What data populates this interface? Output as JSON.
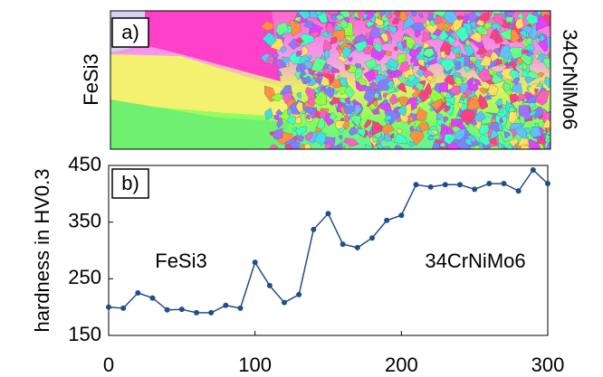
{
  "image_panel": {
    "label": "a)",
    "left_label": "FeSi3",
    "right_label": "34CrNiMo6"
  },
  "chart_data": {
    "type": "line",
    "panel_label": "b)",
    "y_label": "hardness in HV0.3",
    "annotations": [
      "FeSi3",
      "34CrNiMo6"
    ],
    "x": [
      0,
      10,
      20,
      30,
      40,
      50,
      60,
      70,
      80,
      90,
      100,
      110,
      120,
      130,
      140,
      150,
      160,
      170,
      180,
      190,
      200,
      210,
      220,
      230,
      240,
      250,
      260,
      270,
      280,
      290,
      300
    ],
    "series": [
      {
        "color": "#1f4e8c",
        "values": [
          200,
          198,
          225,
          216,
          195,
          196,
          190,
          190,
          203,
          198,
          279,
          238,
          208,
          222,
          337,
          365,
          311,
          305,
          322,
          353,
          362,
          416,
          412,
          416,
          416,
          408,
          418,
          418,
          405,
          442,
          418
        ]
      }
    ],
    "xlim": [
      0,
      300
    ],
    "xticks": [
      0,
      100,
      200,
      300
    ],
    "ylim": [
      150,
      450
    ],
    "yticks": [
      150,
      250,
      350,
      450
    ],
    "grid": false
  }
}
